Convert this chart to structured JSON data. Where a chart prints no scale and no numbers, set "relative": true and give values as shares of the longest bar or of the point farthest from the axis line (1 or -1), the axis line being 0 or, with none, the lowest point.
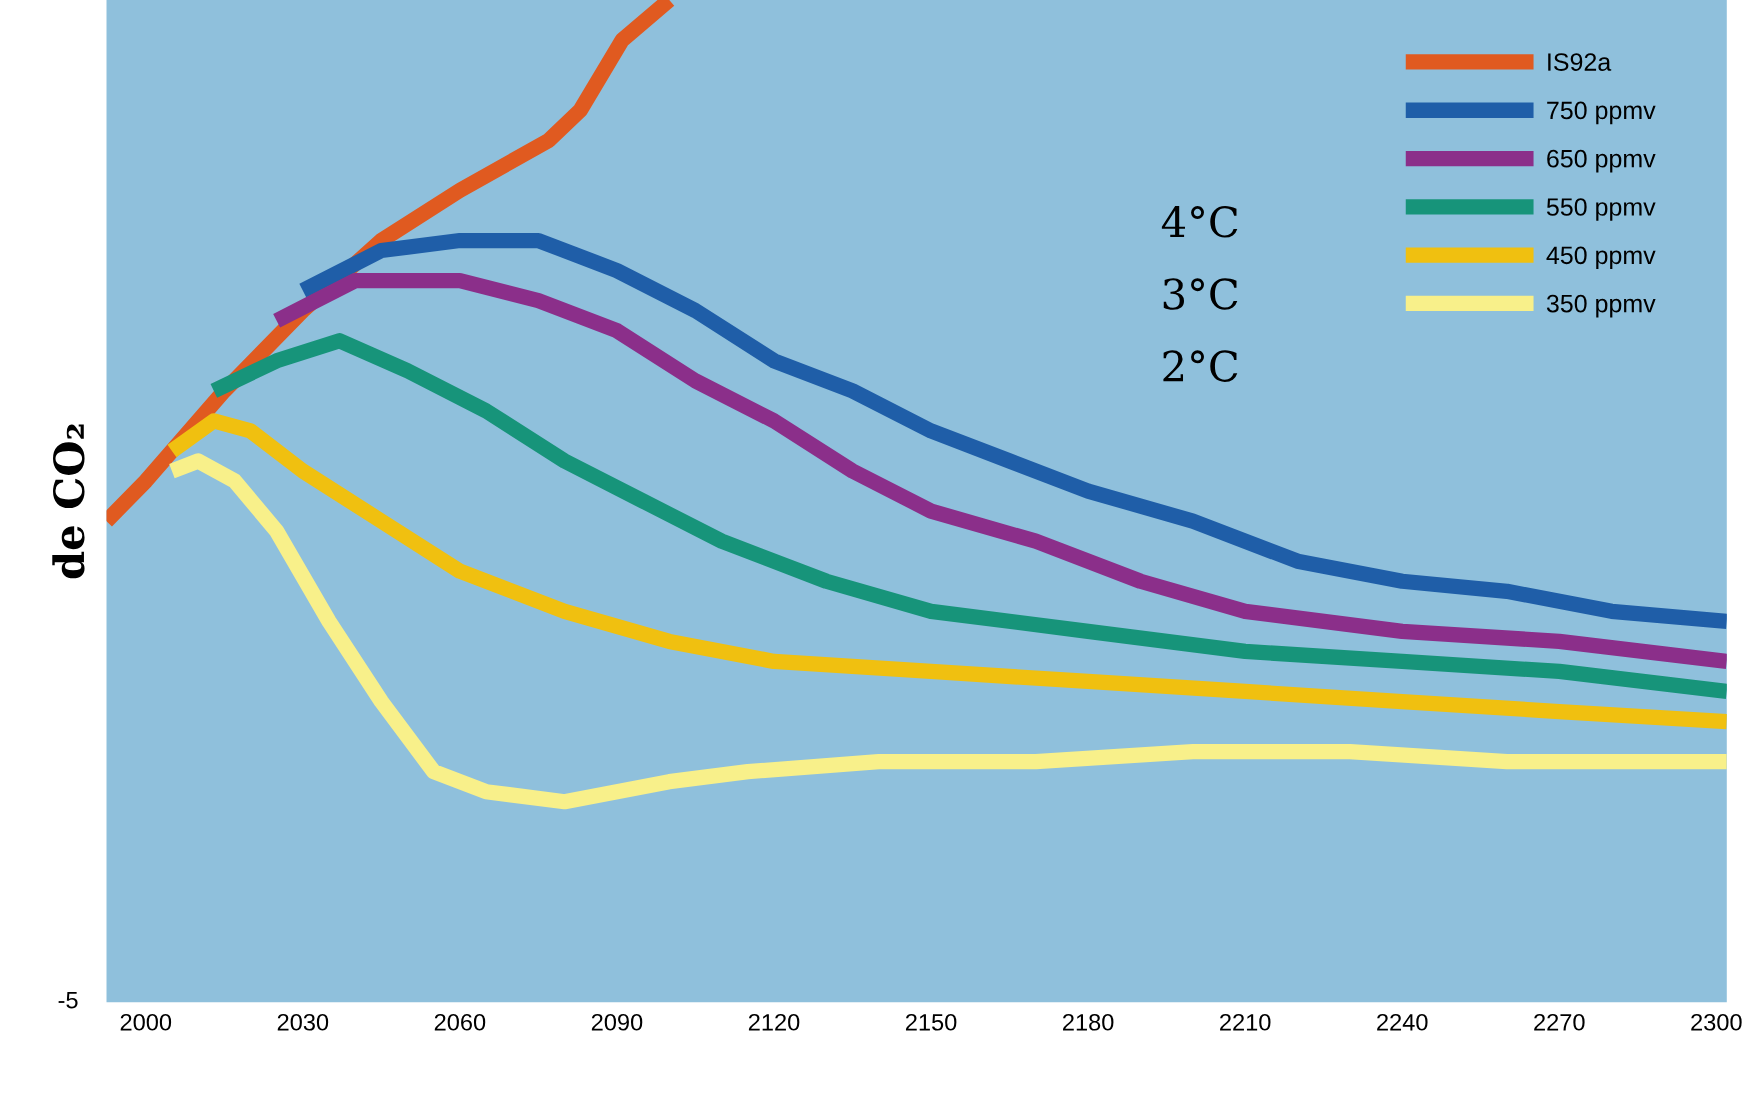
{
  "chart_data": {
    "type": "line",
    "relative": true,
    "ylabel": "de CO₂",
    "xlim": [
      1992.5,
      2302
    ],
    "xticks": [
      2000,
      2030,
      2060,
      2090,
      2120,
      2150,
      2180,
      2210,
      2240,
      2270,
      2300
    ],
    "legend": "top right",
    "line_style": "solid",
    "marker": "none",
    "annotations": [
      "4°C",
      "3°C",
      "2°C",
      "-5"
    ],
    "series": [
      {
        "name": "IS92a",
        "color": "#e05a20",
        "x": [
          1992.5,
          2000,
          2015,
          2030,
          2045,
          2060,
          2077,
          2083,
          2091,
          2100
        ],
        "values": [
          0.48,
          0.52,
          0.61,
          0.69,
          0.76,
          0.81,
          0.86,
          0.89,
          0.96,
          1.0
        ]
      },
      {
        "name": "750 ppmv",
        "color": "#1f5ea8",
        "x": [
          2030,
          2045,
          2060,
          2075,
          2090,
          2105,
          2120,
          2135,
          2150,
          2165,
          2180,
          2200,
          2220,
          2240,
          2260,
          2280,
          2302
        ],
        "values": [
          0.71,
          0.75,
          0.76,
          0.76,
          0.73,
          0.69,
          0.64,
          0.61,
          0.57,
          0.54,
          0.51,
          0.48,
          0.44,
          0.42,
          0.41,
          0.39,
          0.38
        ]
      },
      {
        "name": "650 ppmv",
        "color": "#8b2f8a",
        "x": [
          2025,
          2040,
          2050,
          2060,
          2075,
          2090,
          2105,
          2120,
          2135,
          2150,
          2170,
          2190,
          2210,
          2240,
          2270,
          2302
        ],
        "values": [
          0.68,
          0.72,
          0.72,
          0.72,
          0.7,
          0.67,
          0.62,
          0.58,
          0.53,
          0.49,
          0.46,
          0.42,
          0.39,
          0.37,
          0.36,
          0.34
        ]
      },
      {
        "name": "550 ppmv",
        "color": "#17947a",
        "x": [
          2013,
          2025,
          2037,
          2050,
          2065,
          2080,
          2095,
          2110,
          2130,
          2150,
          2180,
          2210,
          2240,
          2270,
          2302
        ],
        "values": [
          0.61,
          0.64,
          0.66,
          0.63,
          0.59,
          0.54,
          0.5,
          0.46,
          0.42,
          0.39,
          0.37,
          0.35,
          0.34,
          0.33,
          0.31
        ]
      },
      {
        "name": "450 ppmv",
        "color": "#f0c010",
        "x": [
          2005,
          2013,
          2020,
          2030,
          2045,
          2060,
          2080,
          2100,
          2120,
          2150,
          2180,
          2210,
          2240,
          2270,
          2302
        ],
        "values": [
          0.55,
          0.58,
          0.57,
          0.53,
          0.48,
          0.43,
          0.39,
          0.36,
          0.34,
          0.33,
          0.32,
          0.31,
          0.3,
          0.29,
          0.28
        ]
      },
      {
        "name": "350 ppmv",
        "color": "#f8f08a",
        "x": [
          2005,
          2010,
          2017,
          2025,
          2035,
          2045,
          2055,
          2065,
          2080,
          2090,
          2100,
          2115,
          2140,
          2170,
          2200,
          2230,
          2260,
          2302
        ],
        "values": [
          0.53,
          0.54,
          0.52,
          0.47,
          0.38,
          0.3,
          0.23,
          0.21,
          0.2,
          0.21,
          0.22,
          0.23,
          0.24,
          0.24,
          0.25,
          0.25,
          0.24,
          0.24
        ]
      }
    ]
  }
}
